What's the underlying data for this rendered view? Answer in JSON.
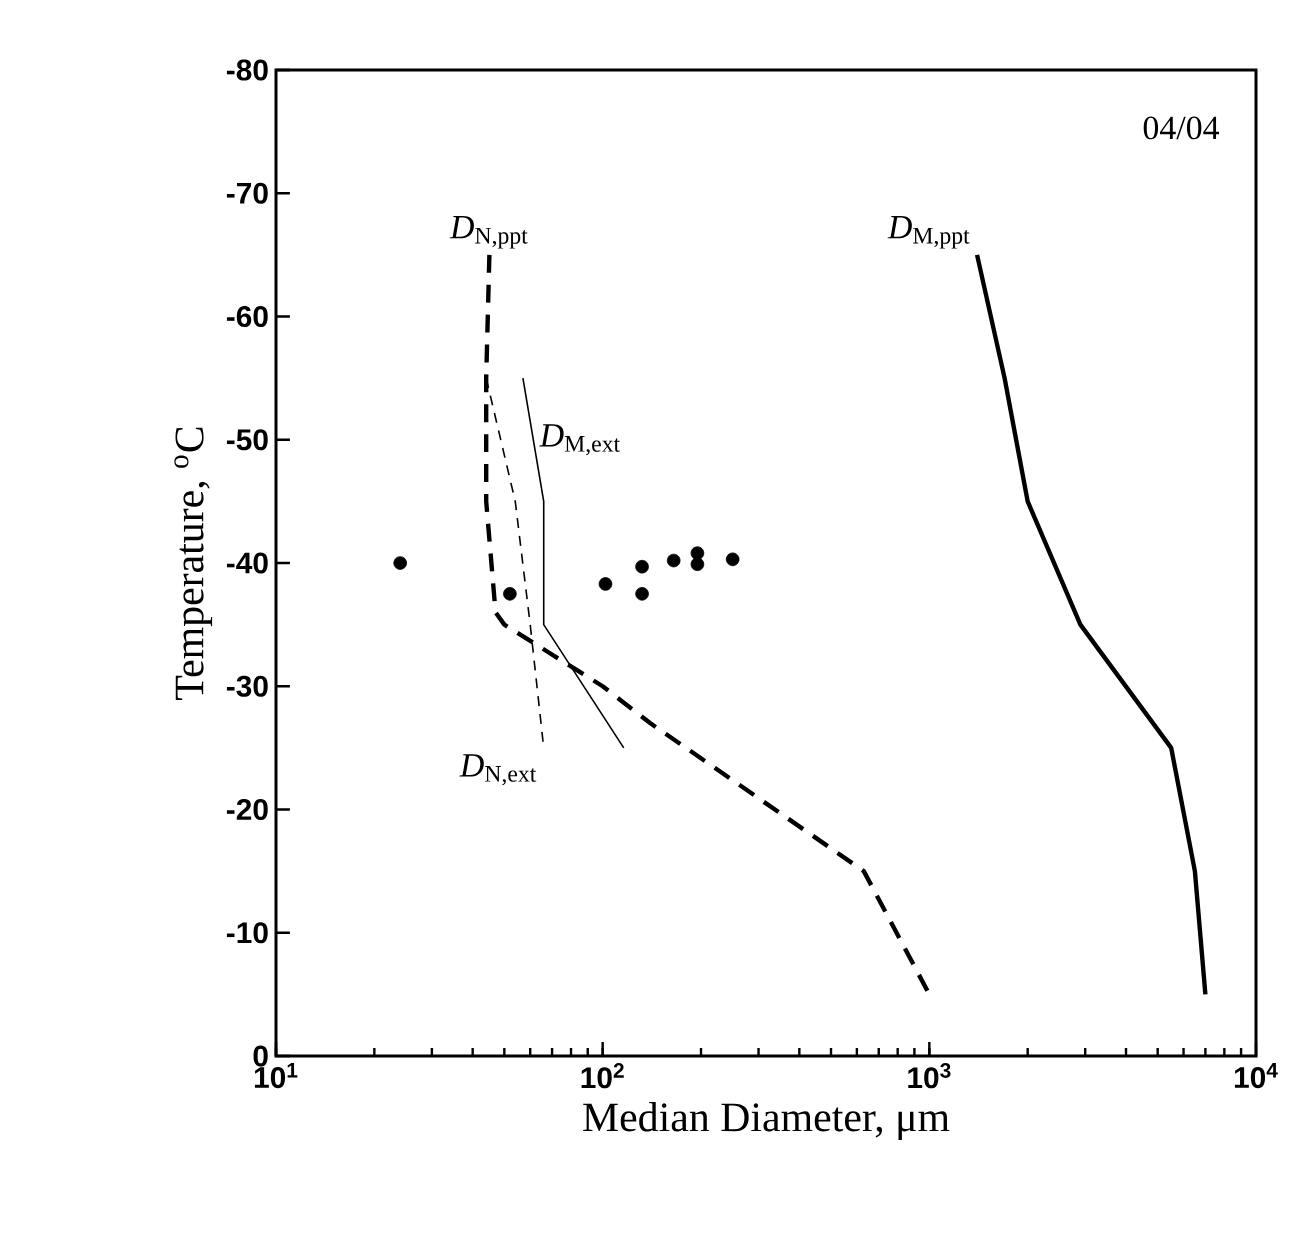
{
  "chart_data": {
    "type": "line",
    "xlabel": "Median Diameter, μm",
    "ylabel": "Temperature, $^{o}$C",
    "annotations": [
      "04/04"
    ],
    "log": "x",
    "xlim": [
      10,
      10000
    ],
    "xticks": [
      {
        "value": 10,
        "label": "10$^{1}$"
      },
      {
        "value": 100,
        "label": "10$^{2}$"
      },
      {
        "value": 1000,
        "label": "10$^{3}$"
      },
      {
        "value": 10000,
        "label": "10$^{4}$"
      }
    ],
    "ylim": [
      0,
      -80
    ],
    "yticks": [
      0,
      -10,
      -20,
      -30,
      -40,
      -50,
      -60,
      -70,
      -80
    ],
    "grid": false,
    "marker": "circle",
    "series": [
      {
        "name": "*D*$_{N,ppt}$",
        "color": "#000000",
        "line_style": "dashed",
        "marker": "none",
        "x": [
          45,
          44,
          44,
          47,
          50,
          100,
          140,
          630,
          1000
        ],
        "values": [
          -65,
          -55,
          -45,
          -36,
          -35,
          -30,
          -27,
          -15,
          -5
        ]
      },
      {
        "name": "*D*$_{M,ppt}$",
        "color": "#000000",
        "line_style": "solid",
        "marker": "none",
        "x": [
          1400,
          1700,
          2000,
          2900,
          5500,
          6500,
          7000
        ],
        "values": [
          -65,
          -55,
          -45,
          -35,
          -25,
          -15,
          -5
        ]
      },
      {
        "name": "*D*$_{M,ext}$",
        "color": "#000000",
        "line_style": "solid",
        "marker": "none",
        "x": [
          57,
          66,
          66,
          116
        ],
        "values": [
          -55,
          -45,
          -35,
          -25
        ]
      },
      {
        "name": "*D*$_{N,ext}$",
        "color": "#000000",
        "line_style": "dashed",
        "marker": "none",
        "x": [
          44,
          54,
          60,
          66
        ],
        "values": [
          -55,
          -45,
          -35,
          -25
        ]
      },
      {
        "type": "scatter",
        "color": "#000000",
        "x": [
          24,
          52,
          102,
          132,
          132,
          165,
          195,
          195,
          250
        ],
        "values": [
          -40,
          -37.5,
          -38.3,
          -39.7,
          -37.5,
          -40.2,
          -40.8,
          -39.9,
          -40.3
        ]
      }
    ]
  }
}
